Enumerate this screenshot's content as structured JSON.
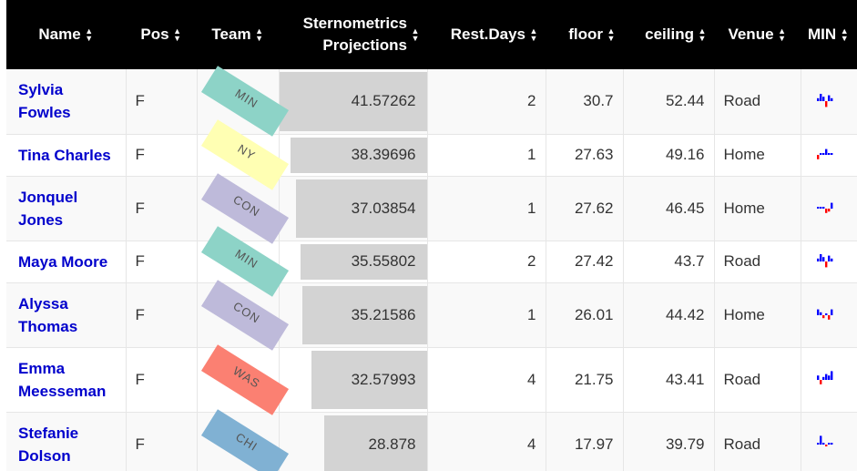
{
  "columns": [
    {
      "label": "Name"
    },
    {
      "label": "Pos"
    },
    {
      "label": "Team"
    },
    {
      "label": "Sternometrics Projections"
    },
    {
      "label": "Rest.Days"
    },
    {
      "label": "floor"
    },
    {
      "label": "ceiling"
    },
    {
      "label": "Venue"
    },
    {
      "label": "MIN"
    }
  ],
  "projection_max": 41.57262,
  "rows": [
    {
      "name": "Sylvia Fowles",
      "pos": "F",
      "team": "MIN",
      "team_color": "#8dd3c7",
      "projection": "41.57262",
      "projection_value": 41.57262,
      "rest_days": "2",
      "floor": "30.7",
      "ceiling": "52.44",
      "venue": "Road",
      "min_spark": [
        2,
        5,
        3,
        -4,
        4,
        2
      ]
    },
    {
      "name": "Tina Charles",
      "pos": "F",
      "team": "NY",
      "team_color": "#ffffb3",
      "projection": "38.39696",
      "projection_value": 38.39696,
      "rest_days": "1",
      "floor": "27.63",
      "ceiling": "49.16",
      "venue": "Home",
      "min_spark": [
        -3,
        1,
        1,
        4,
        1,
        1
      ]
    },
    {
      "name": "Jonquel Jones",
      "pos": "F",
      "team": "CON",
      "team_color": "#bebada",
      "projection": "37.03854",
      "projection_value": 37.03854,
      "rest_days": "1",
      "floor": "27.62",
      "ceiling": "46.45",
      "venue": "Home",
      "min_spark": [
        1,
        1,
        0,
        -3,
        -2,
        4
      ]
    },
    {
      "name": "Maya Moore",
      "pos": "F",
      "team": "MIN",
      "team_color": "#8dd3c7",
      "projection": "35.55802",
      "projection_value": 35.55802,
      "rest_days": "2",
      "floor": "27.42",
      "ceiling": "43.7",
      "venue": "Road",
      "min_spark": [
        2,
        5,
        3,
        -4,
        4,
        2
      ]
    },
    {
      "name": "Alyssa Thomas",
      "pos": "F",
      "team": "CON",
      "team_color": "#bebada",
      "projection": "35.21586",
      "projection_value": 35.21586,
      "rest_days": "1",
      "floor": "26.01",
      "ceiling": "44.42",
      "venue": "Home",
      "min_spark": [
        4,
        2,
        -2,
        1,
        -3,
        4
      ]
    },
    {
      "name": "Emma Meesseman",
      "pos": "F",
      "team": "WAS",
      "team_color": "#fb8072",
      "projection": "32.57993",
      "projection_value": 32.57993,
      "rest_days": "4",
      "floor": "21.75",
      "ceiling": "43.41",
      "venue": "Road",
      "min_spark": [
        3,
        -3,
        2,
        4,
        3,
        6
      ]
    },
    {
      "name": "Stefanie Dolson",
      "pos": "F",
      "team": "CHI",
      "team_color": "#80b1d3",
      "projection": "28.878",
      "projection_value": 28.878,
      "rest_days": "4",
      "floor": "17.97",
      "ceiling": "39.79",
      "venue": "Road",
      "min_spark": [
        1,
        6,
        1,
        -1,
        1,
        1
      ]
    }
  ],
  "colors": {
    "header_bg": "#000000",
    "name_link": "#0000cc",
    "bar": "#d3d3d3",
    "spark_pos": "#0000ff",
    "spark_neg": "#ff0000"
  }
}
